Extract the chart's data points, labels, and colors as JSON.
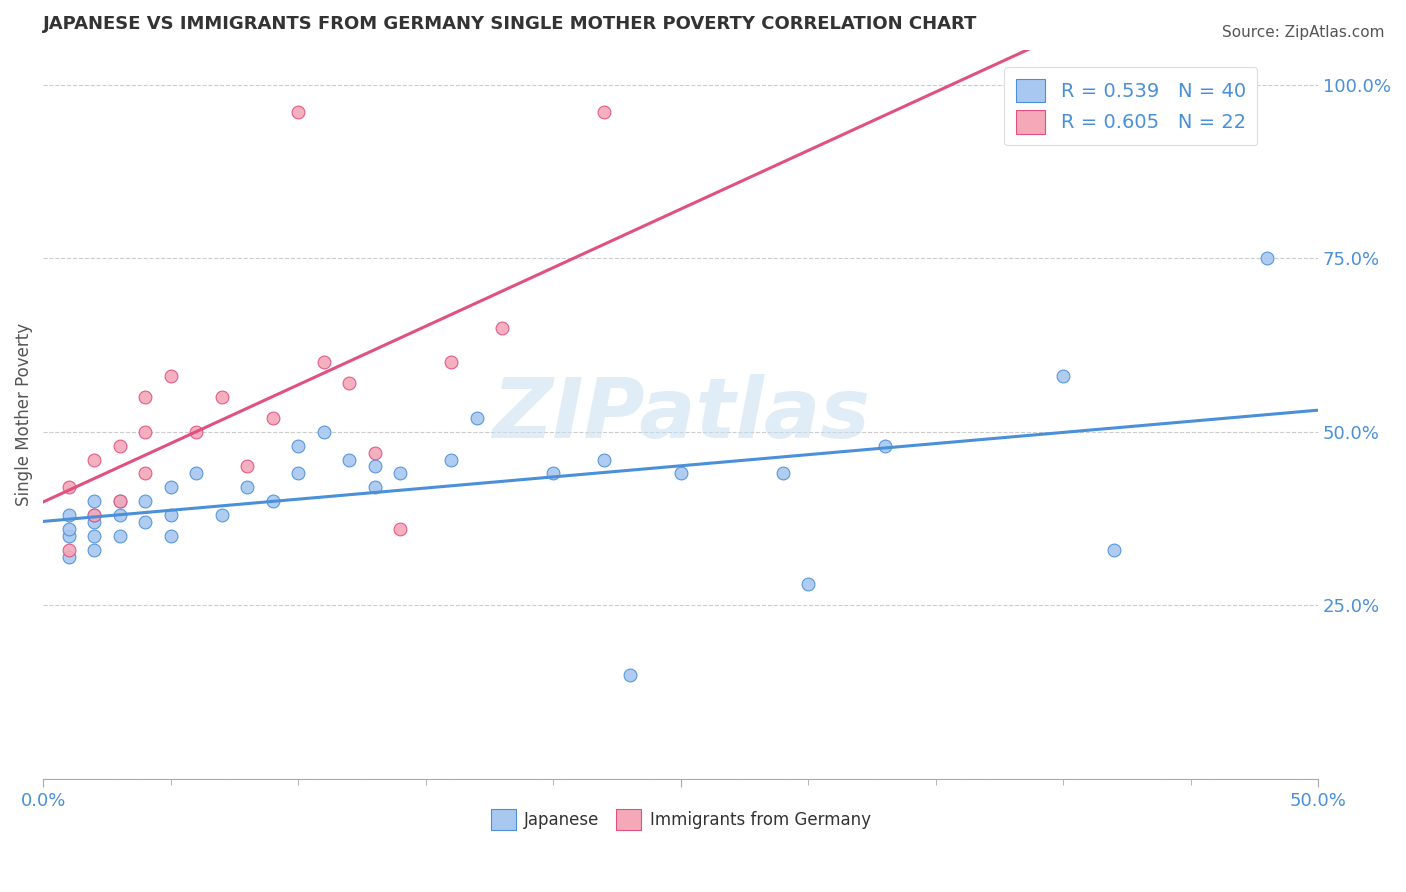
{
  "title": "JAPANESE VS IMMIGRANTS FROM GERMANY SINGLE MOTHER POVERTY CORRELATION CHART",
  "source": "Source: ZipAtlas.com",
  "xlabel": "",
  "ylabel": "Single Mother Poverty",
  "xlim": [
    0.0,
    0.5
  ],
  "ylim": [
    0.0,
    1.05
  ],
  "R_japanese": 0.539,
  "N_japanese": 40,
  "R_germany": 0.605,
  "N_germany": 22,
  "color_japanese": "#a8c8f0",
  "color_germany": "#f4a8b8",
  "line_color_japanese": "#4a90d9",
  "line_color_germany": "#e05080",
  "watermark": "ZIPatlas",
  "legend_label_japanese": "Japanese",
  "legend_label_germany": "Immigrants from Germany",
  "japanese_x": [
    0.01,
    0.01,
    0.01,
    0.01,
    0.02,
    0.02,
    0.02,
    0.02,
    0.02,
    0.03,
    0.03,
    0.03,
    0.04,
    0.04,
    0.05,
    0.05,
    0.05,
    0.06,
    0.07,
    0.08,
    0.09,
    0.1,
    0.1,
    0.11,
    0.12,
    0.13,
    0.13,
    0.14,
    0.16,
    0.17,
    0.2,
    0.22,
    0.23,
    0.25,
    0.29,
    0.3,
    0.33,
    0.4,
    0.42,
    0.48
  ],
  "japanese_y": [
    0.32,
    0.35,
    0.36,
    0.38,
    0.33,
    0.35,
    0.37,
    0.38,
    0.4,
    0.35,
    0.38,
    0.4,
    0.37,
    0.4,
    0.35,
    0.38,
    0.42,
    0.44,
    0.38,
    0.42,
    0.4,
    0.44,
    0.48,
    0.5,
    0.46,
    0.42,
    0.45,
    0.44,
    0.46,
    0.52,
    0.44,
    0.46,
    0.15,
    0.44,
    0.44,
    0.28,
    0.48,
    0.58,
    0.33,
    0.75
  ],
  "germany_x": [
    0.01,
    0.01,
    0.02,
    0.02,
    0.03,
    0.03,
    0.04,
    0.04,
    0.04,
    0.05,
    0.06,
    0.07,
    0.08,
    0.09,
    0.1,
    0.11,
    0.12,
    0.13,
    0.14,
    0.16,
    0.18,
    0.22
  ],
  "germany_y": [
    0.33,
    0.42,
    0.38,
    0.46,
    0.4,
    0.48,
    0.44,
    0.5,
    0.55,
    0.58,
    0.5,
    0.55,
    0.45,
    0.52,
    0.96,
    0.6,
    0.57,
    0.47,
    0.36,
    0.6,
    0.65,
    0.96
  ]
}
